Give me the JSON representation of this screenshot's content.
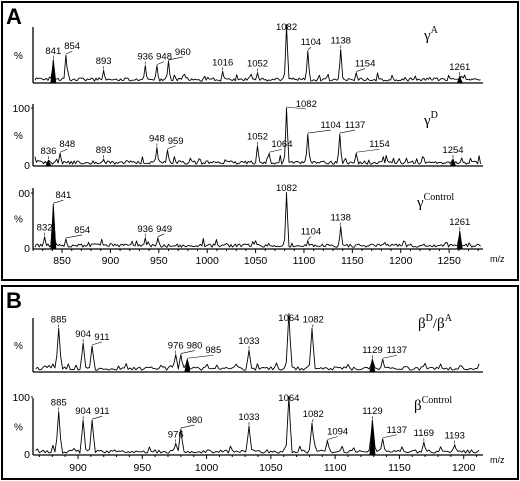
{
  "panels": [
    {
      "letter": "A",
      "x_unit": "m/z",
      "x_ticks": [
        850,
        900,
        950,
        1000,
        1050,
        1100,
        1150,
        1200,
        1250
      ],
      "xlim": [
        820,
        1285
      ]
    },
    {
      "letter": "B",
      "x_unit": "m/z",
      "x_ticks": [
        900,
        950,
        1000,
        1050,
        1100,
        1150,
        1200
      ],
      "xlim": [
        865,
        1215
      ]
    }
  ],
  "chart_data": [
    {
      "type": "line",
      "panel": "A",
      "sample_base": "γ",
      "sample_sup": "A",
      "ylabel": "%",
      "y_ticks": [],
      "xlim": [
        820,
        1285
      ],
      "ylim": [
        0,
        100
      ],
      "highlighted": [
        841,
        1261
      ],
      "peaks": [
        {
          "x": 841,
          "y": 40,
          "label": "841"
        },
        {
          "x": 854,
          "y": 48,
          "label": "854"
        },
        {
          "x": 893,
          "y": 22,
          "label": "893"
        },
        {
          "x": 936,
          "y": 30,
          "label": "936"
        },
        {
          "x": 948,
          "y": 30,
          "label": "948"
        },
        {
          "x": 960,
          "y": 38,
          "label": "960"
        },
        {
          "x": 1016,
          "y": 20,
          "label": "1016"
        },
        {
          "x": 1052,
          "y": 18,
          "label": "1052"
        },
        {
          "x": 1082,
          "y": 100,
          "label": "1082"
        },
        {
          "x": 1104,
          "y": 55,
          "label": "1104"
        },
        {
          "x": 1138,
          "y": 58,
          "label": "1138"
        },
        {
          "x": 1154,
          "y": 18,
          "label": "1154"
        },
        {
          "x": 1261,
          "y": 12,
          "label": "1261"
        }
      ]
    },
    {
      "type": "line",
      "panel": "A",
      "sample_base": "γ",
      "sample_sup": "D",
      "ylabel": "%",
      "y_ticks": [
        "100",
        "0"
      ],
      "xlim": [
        820,
        1285
      ],
      "ylim": [
        0,
        100
      ],
      "highlighted": [
        836,
        1254
      ],
      "peaks": [
        {
          "x": 836,
          "y": 10,
          "label": "836"
        },
        {
          "x": 848,
          "y": 22,
          "label": "848"
        },
        {
          "x": 893,
          "y": 12,
          "label": "893"
        },
        {
          "x": 948,
          "y": 32,
          "label": "948"
        },
        {
          "x": 959,
          "y": 28,
          "label": "959"
        },
        {
          "x": 1052,
          "y": 35,
          "label": "1052"
        },
        {
          "x": 1064,
          "y": 22,
          "label": "1064"
        },
        {
          "x": 1082,
          "y": 100,
          "label": "1082"
        },
        {
          "x": 1104,
          "y": 55,
          "label": "1104"
        },
        {
          "x": 1137,
          "y": 55,
          "label": "1137"
        },
        {
          "x": 1154,
          "y": 22,
          "label": "1154"
        },
        {
          "x": 1254,
          "y": 12,
          "label": "1254"
        }
      ]
    },
    {
      "type": "line",
      "panel": "A",
      "sample_base": "γ",
      "sample_sup": "Control",
      "ylabel": "%",
      "y_ticks": [
        "00",
        "0"
      ],
      "xlim": [
        820,
        1285
      ],
      "ylim": [
        0,
        100
      ],
      "highlighted": [
        841,
        1261
      ],
      "peaks": [
        {
          "x": 832,
          "y": 22,
          "label": "832"
        },
        {
          "x": 841,
          "y": 80,
          "label": "841"
        },
        {
          "x": 854,
          "y": 18,
          "label": "854"
        },
        {
          "x": 936,
          "y": 20,
          "label": "936"
        },
        {
          "x": 949,
          "y": 20,
          "label": "949"
        },
        {
          "x": 1082,
          "y": 100,
          "label": "1082"
        },
        {
          "x": 1104,
          "y": 15,
          "label": "1104"
        },
        {
          "x": 1138,
          "y": 40,
          "label": "1138"
        },
        {
          "x": 1261,
          "y": 32,
          "label": "1261"
        }
      ]
    },
    {
      "type": "line",
      "panel": "B",
      "sample_base": "β",
      "sample_sup": "D",
      "sample_base2": "/β",
      "sample_sup2": "A",
      "ylabel": "%",
      "y_ticks": [],
      "xlim": [
        865,
        1215
      ],
      "ylim": [
        0,
        100
      ],
      "highlighted": [
        985,
        1129
      ],
      "peaks": [
        {
          "x": 885,
          "y": 75,
          "label": "885"
        },
        {
          "x": 904,
          "y": 50,
          "label": "904"
        },
        {
          "x": 911,
          "y": 45,
          "label": "911"
        },
        {
          "x": 976,
          "y": 30,
          "label": "976"
        },
        {
          "x": 980,
          "y": 30,
          "label": "980"
        },
        {
          "x": 985,
          "y": 22,
          "label": "985"
        },
        {
          "x": 1033,
          "y": 38,
          "label": "1033"
        },
        {
          "x": 1064,
          "y": 100,
          "label": "1064"
        },
        {
          "x": 1082,
          "y": 75,
          "label": "1082"
        },
        {
          "x": 1129,
          "y": 22,
          "label": "1129"
        },
        {
          "x": 1137,
          "y": 22,
          "label": "1137"
        }
      ]
    },
    {
      "type": "line",
      "panel": "B",
      "sample_base": "β",
      "sample_sup": "Control",
      "ylabel": "%",
      "y_ticks": [
        "100",
        "0"
      ],
      "xlim": [
        865,
        1215
      ],
      "ylim": [
        0,
        100
      ],
      "highlighted": [
        1129
      ],
      "peaks": [
        {
          "x": 885,
          "y": 75,
          "label": "885"
        },
        {
          "x": 904,
          "y": 60,
          "label": "904"
        },
        {
          "x": 911,
          "y": 60,
          "label": "911"
        },
        {
          "x": 976,
          "y": 20,
          "label": "976"
        },
        {
          "x": 980,
          "y": 45,
          "label": "980"
        },
        {
          "x": 1033,
          "y": 50,
          "label": "1033"
        },
        {
          "x": 1064,
          "y": 100,
          "label": "1064"
        },
        {
          "x": 1082,
          "y": 55,
          "label": "1082"
        },
        {
          "x": 1094,
          "y": 25,
          "label": "1094"
        },
        {
          "x": 1129,
          "y": 60,
          "label": "1129"
        },
        {
          "x": 1137,
          "y": 28,
          "label": "1137"
        },
        {
          "x": 1169,
          "y": 22,
          "label": "1169"
        },
        {
          "x": 1193,
          "y": 18,
          "label": "1193"
        }
      ]
    }
  ]
}
